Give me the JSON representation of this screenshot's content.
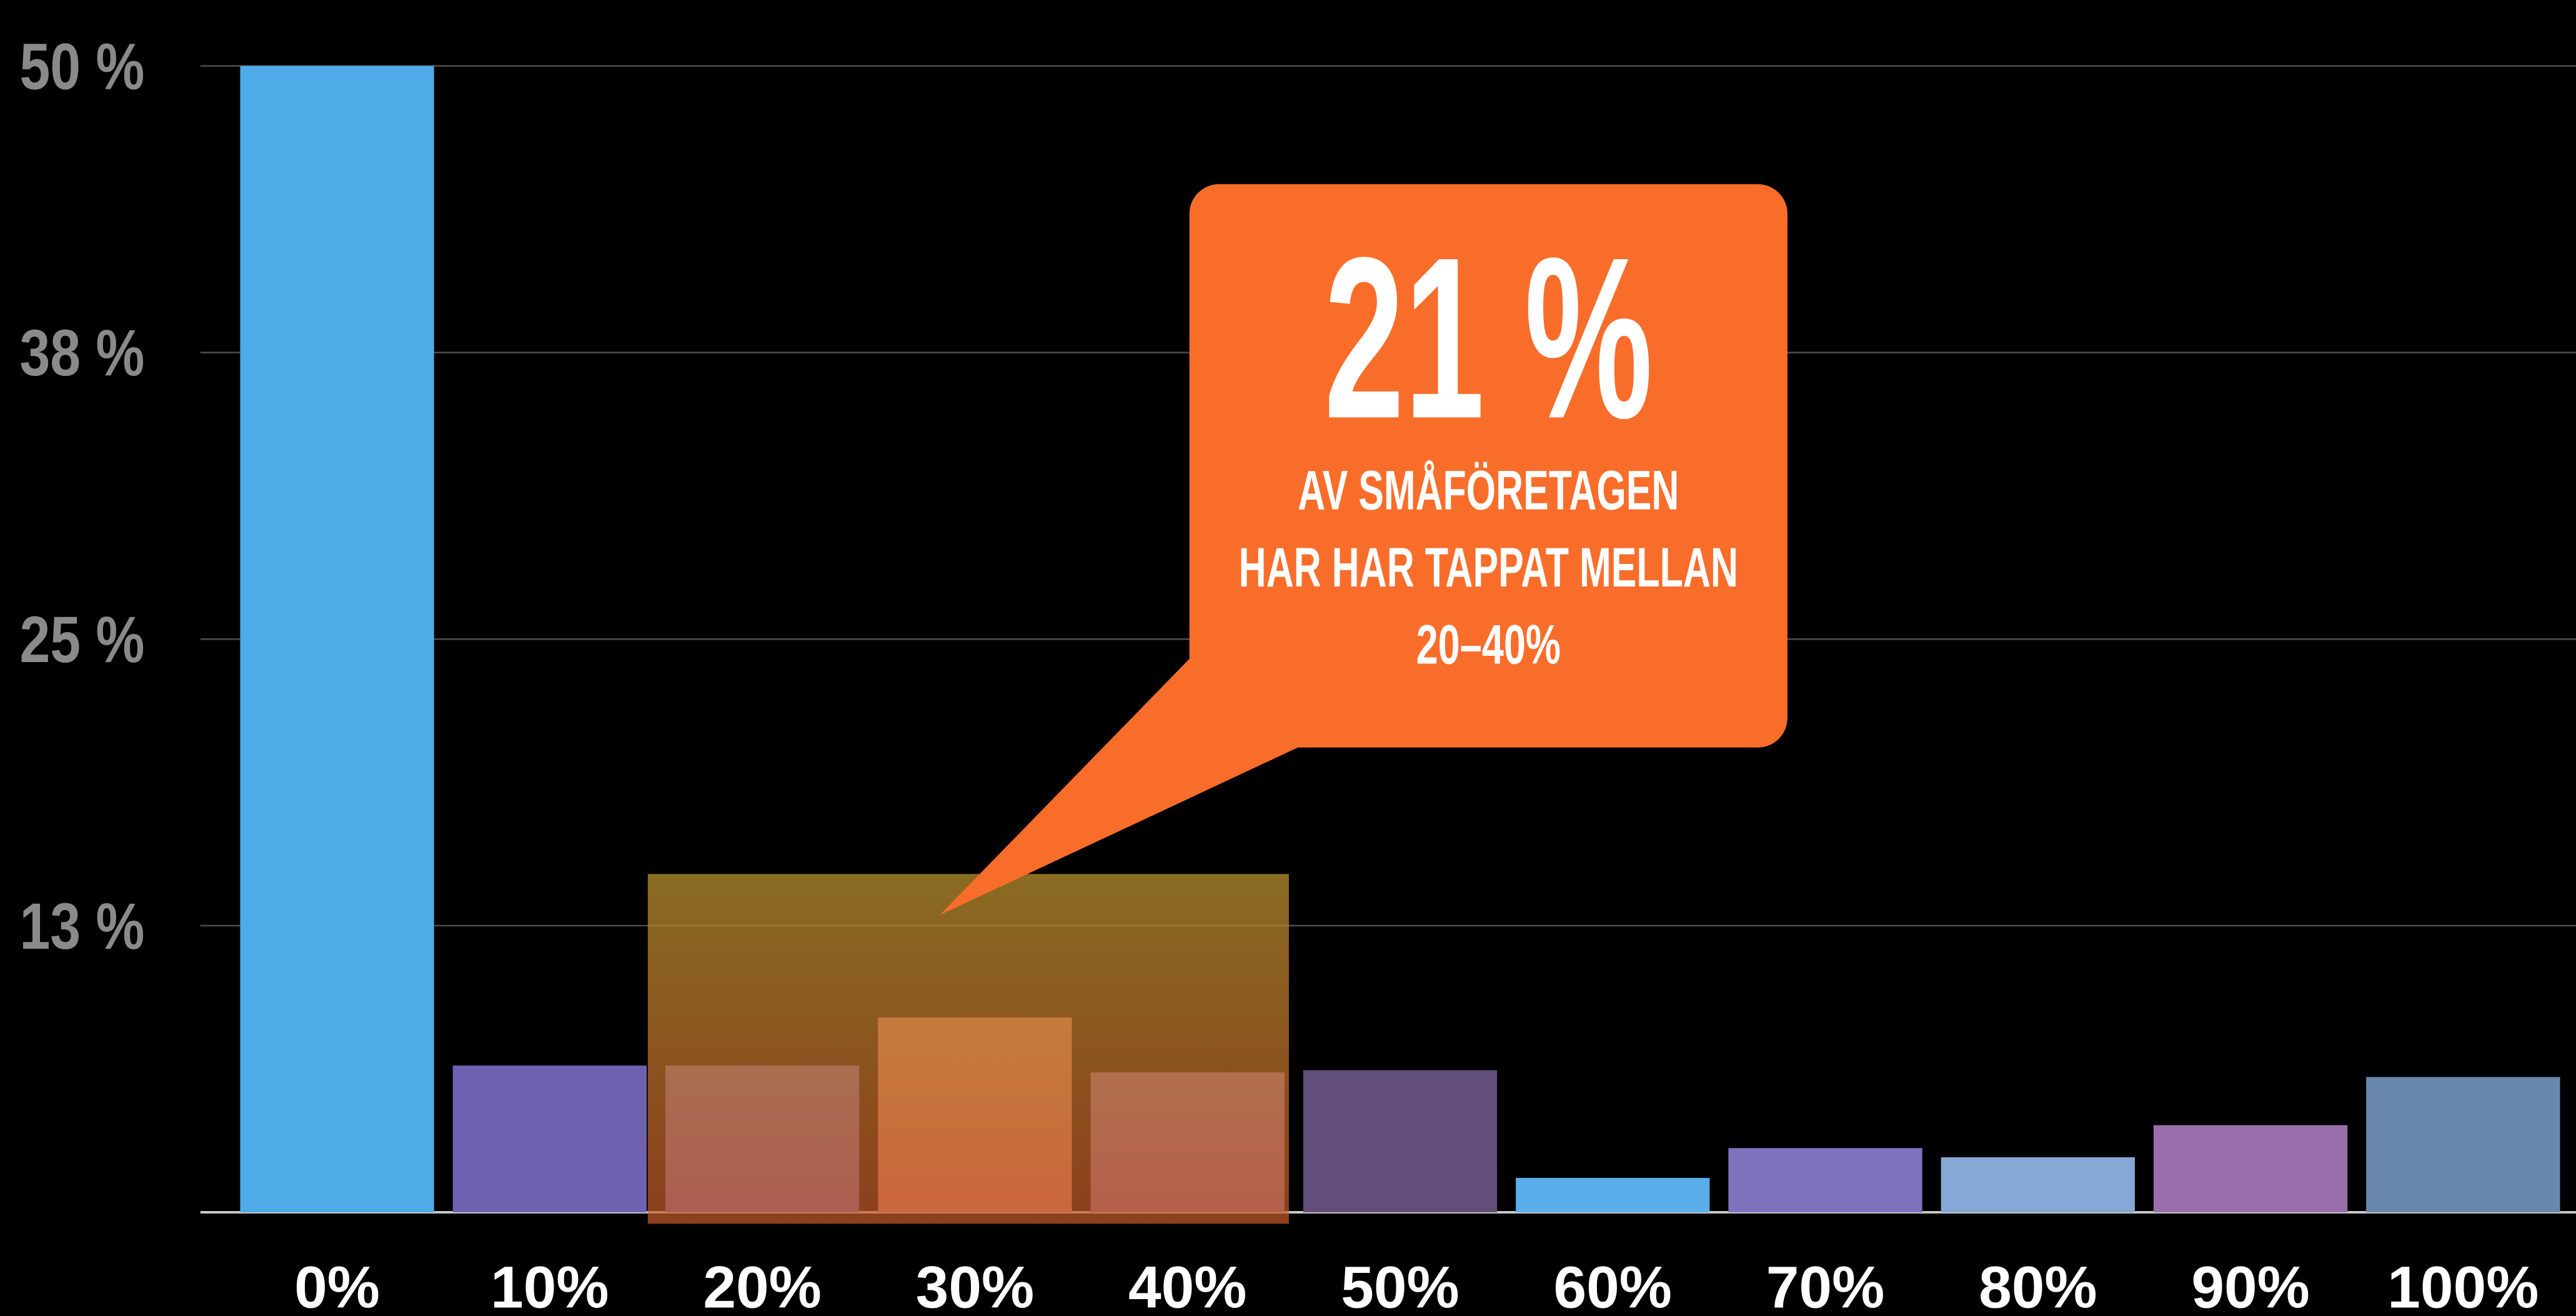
{
  "chart_data": {
    "type": "bar",
    "categories": [
      "0%",
      "10%",
      "20%",
      "30%",
      "40%",
      "50%",
      "60%",
      "70%",
      "80%",
      "90%",
      "100%"
    ],
    "values": [
      50,
      6.4,
      6.4,
      8.5,
      6.1,
      6.2,
      1.5,
      2.8,
      2.4,
      3.8,
      5.9
    ],
    "colors": [
      "#4eabe8",
      "#6e62b0",
      "#6e62b0",
      "#d0806a",
      "#8a6aa0",
      "#624e7a",
      "#5aaeea",
      "#7f72bc",
      "#85a8d6",
      "#9a6eaa",
      "#6a88ae"
    ],
    "ylim": [
      0,
      50
    ],
    "yticks": [
      {
        "value": 12.5,
        "label": "13 %"
      },
      {
        "value": 25,
        "label": "25 %"
      },
      {
        "value": 37.5,
        "label": "38 %"
      },
      {
        "value": 50,
        "label": "50 %"
      }
    ],
    "grid": true,
    "annotation": {
      "headline": "21 %",
      "lines": [
        "AV SMÅFÖRETAGEN",
        "HAR HAR TAPPAT MELLAN",
        "20–40%"
      ]
    }
  }
}
